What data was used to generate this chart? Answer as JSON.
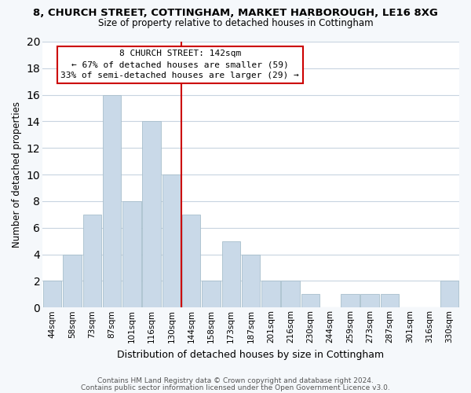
{
  "title": "8, CHURCH STREET, COTTINGHAM, MARKET HARBOROUGH, LE16 8XG",
  "subtitle": "Size of property relative to detached houses in Cottingham",
  "xlabel": "Distribution of detached houses by size in Cottingham",
  "ylabel": "Number of detached properties",
  "bar_labels": [
    "44sqm",
    "58sqm",
    "73sqm",
    "87sqm",
    "101sqm",
    "116sqm",
    "130sqm",
    "144sqm",
    "158sqm",
    "173sqm",
    "187sqm",
    "201sqm",
    "216sqm",
    "230sqm",
    "244sqm",
    "259sqm",
    "273sqm",
    "287sqm",
    "301sqm",
    "316sqm",
    "330sqm"
  ],
  "bar_values": [
    2,
    4,
    7,
    16,
    8,
    14,
    10,
    7,
    2,
    5,
    4,
    2,
    2,
    1,
    0,
    1,
    1,
    1,
    0,
    0,
    2
  ],
  "bar_color": "#c9d9e8",
  "bar_edgecolor": "#a8bfcc",
  "vline_color": "#cc0000",
  "annotation_title": "8 CHURCH STREET: 142sqm",
  "annotation_line1": "← 67% of detached houses are smaller (59)",
  "annotation_line2": "33% of semi-detached houses are larger (29) →",
  "annotation_box_facecolor": "#ffffff",
  "annotation_box_edgecolor": "#cc0000",
  "ylim": [
    0,
    20
  ],
  "yticks": [
    0,
    2,
    4,
    6,
    8,
    10,
    12,
    14,
    16,
    18,
    20
  ],
  "footer1": "Contains HM Land Registry data © Crown copyright and database right 2024.",
  "footer2": "Contains public sector information licensed under the Open Government Licence v3.0.",
  "grid_color": "#c8d4e0",
  "background_color": "#ffffff",
  "fig_background_color": "#f5f8fb"
}
